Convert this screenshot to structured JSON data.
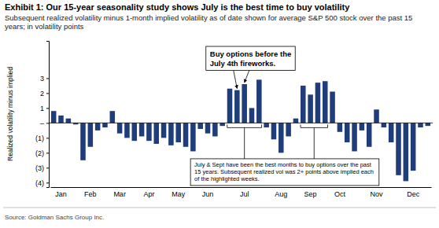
{
  "chart_data": {
    "type": "bar",
    "title": "Exhibit 1: Our 15-year seasonality study shows July is the best time to buy volatility",
    "subtitle": "Subsequent realized volatility minus 1-month implied volatility as of date shown for average S&P 500 stock over the past 15 years; in volatility points",
    "y_label": "Realized volatility minus implied",
    "source": "Source: Goldman Sachs Group Inc.",
    "annotations": [
      "Buy options before the July 4th fireworks.",
      "July & Sept have been the best months to buy options over the past 15 years. Subsequent realized vol was 2+ points above implied each of the highlighted weeks."
    ],
    "categories": [
      null,
      "Jan",
      null,
      null,
      null,
      "Feb",
      null,
      null,
      null,
      "Mar",
      null,
      null,
      null,
      "Apr",
      null,
      null,
      null,
      "May",
      null,
      null,
      null,
      "Jun",
      null,
      null,
      null,
      null,
      "Jul",
      null,
      null,
      null,
      null,
      "Aug",
      null,
      null,
      null,
      "Sep",
      null,
      null,
      null,
      "Oct",
      null,
      null,
      null,
      null,
      "Nov",
      null,
      null,
      null,
      null,
      "Dec",
      null,
      null
    ],
    "values": [
      0.8,
      0.5,
      0.3,
      -0.1,
      -2.5,
      -1.6,
      -0.5,
      -0.3,
      0.8,
      -0.7,
      -1.0,
      -1.2,
      -0.9,
      -1.2,
      -1.4,
      -1.0,
      -1.5,
      -1.3,
      -1.6,
      -1.9,
      -0.4,
      -0.7,
      -0.9,
      -0.2,
      2.3,
      2.2,
      2.6,
      1.0,
      2.9,
      -0.3,
      -1.1,
      -2.0,
      -0.9,
      0.3,
      2.5,
      1.9,
      2.7,
      2.8,
      2.1,
      -0.6,
      -1.3,
      -1.9,
      -0.5,
      -1.6,
      0.9,
      -0.3,
      -1.3,
      -3.5,
      -3.9,
      -3.2,
      -0.3,
      -0.2
    ],
    "color": "#1f3d7a",
    "ylim": [
      -4.3,
      5.5
    ],
    "yticks": [
      {
        "value": -4,
        "label": "(4)"
      },
      {
        "value": -3,
        "label": "(3)"
      },
      {
        "value": -2,
        "label": "(2)"
      },
      {
        "value": -1,
        "label": "(1)"
      },
      {
        "value": 0,
        "label": "–"
      },
      1,
      2,
      3
    ],
    "grid": false
  }
}
